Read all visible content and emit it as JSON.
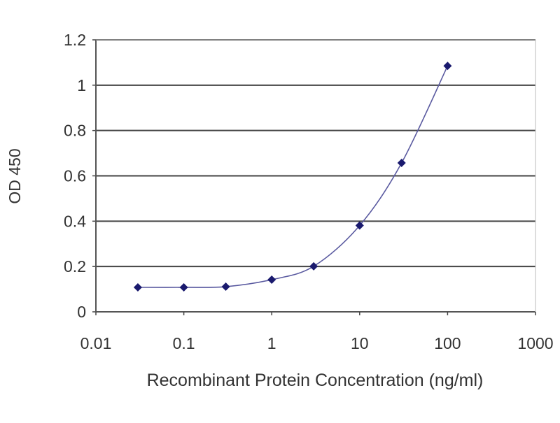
{
  "chart_data": {
    "type": "line",
    "title": "",
    "xlabel": "Recombinant Protein Concentration (ng/ml)",
    "ylabel": "OD 450",
    "x_scale": "log",
    "xlim": [
      0.01,
      1000
    ],
    "ylim": [
      0,
      1.2
    ],
    "x_ticks": [
      0.01,
      0.1,
      1,
      10,
      100,
      1000
    ],
    "x_tick_labels": [
      "0.01",
      "0.1",
      "1",
      "10",
      "100",
      "1000"
    ],
    "y_ticks": [
      0,
      0.2,
      0.4,
      0.6,
      0.8,
      1,
      1.2
    ],
    "y_tick_labels": [
      "0",
      "0.2",
      "0.4",
      "0.6",
      "0.8",
      "1",
      "1.2"
    ],
    "grid": "horizontal",
    "series": [
      {
        "x": [
          0.03,
          0.1,
          0.3,
          1,
          3,
          10,
          30,
          100
        ],
        "y": [
          0.108,
          0.108,
          0.111,
          0.142,
          0.201,
          0.381,
          0.657,
          1.085
        ],
        "color": "#1a1a6e",
        "marker": "diamond",
        "line": "smooth"
      }
    ]
  }
}
